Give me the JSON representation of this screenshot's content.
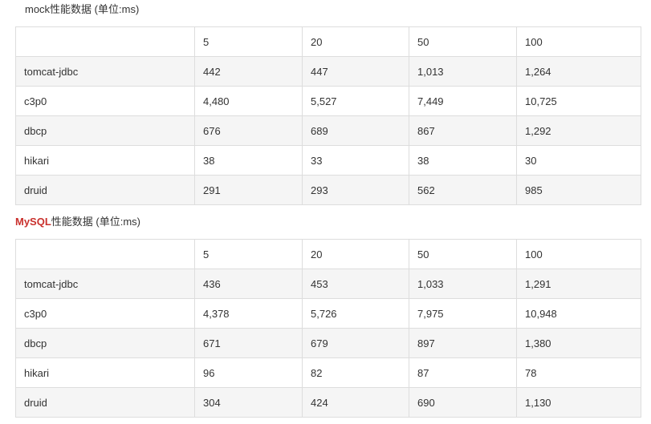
{
  "mock_section": {
    "caption": "mock性能数据 (单位:ms)",
    "header": [
      "",
      "5",
      "20",
      "50",
      "100"
    ],
    "rows": [
      [
        "tomcat-jdbc",
        "442",
        "447",
        "1,013",
        "1,264"
      ],
      [
        "c3p0",
        "4,480",
        "5,527",
        "7,449",
        "10,725"
      ],
      [
        "dbcp",
        "676",
        "689",
        "867",
        "1,292"
      ],
      [
        "hikari",
        "38",
        "33",
        "38",
        "30"
      ],
      [
        "druid",
        "291",
        "293",
        "562",
        "985"
      ]
    ]
  },
  "mysql_section": {
    "caption_brand": "MySQL",
    "caption_rest": "性能数据 (单位:ms)",
    "header": [
      "",
      "5",
      "20",
      "50",
      "100"
    ],
    "rows": [
      [
        "tomcat-jdbc",
        "436",
        "453",
        "1,033",
        "1,291"
      ],
      [
        "c3p0",
        "4,378",
        "5,726",
        "7,975",
        "10,948"
      ],
      [
        "dbcp",
        "671",
        "679",
        "897",
        "1,380"
      ],
      [
        "hikari",
        "96",
        "82",
        "87",
        "78"
      ],
      [
        "druid",
        "304",
        "424",
        "690",
        "1,130"
      ]
    ]
  },
  "colors": {
    "brand_red": "#c9302c",
    "row_shade": "#f5f5f5",
    "border": "#dddddd",
    "text": "#333333"
  }
}
